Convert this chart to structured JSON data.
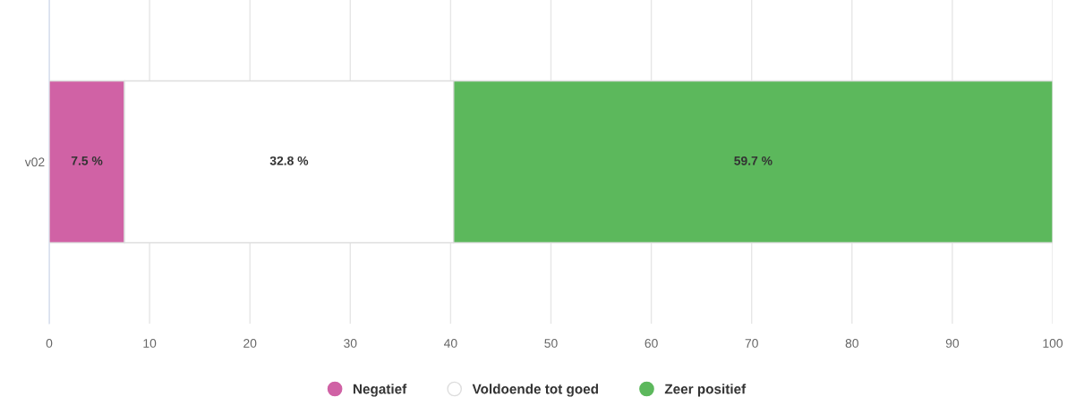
{
  "chart_data": {
    "type": "bar",
    "orientation": "horizontal",
    "stacked": true,
    "categories": [
      "v02"
    ],
    "series": [
      {
        "name": "Negatief",
        "color": "#d062a5",
        "values": [
          7.5
        ],
        "value_labels": [
          "7.5 %"
        ]
      },
      {
        "name": "Voldoende tot goed",
        "color": "#ffffff",
        "values": [
          32.8
        ],
        "value_labels": [
          "32.8 %"
        ]
      },
      {
        "name": "Zeer positief",
        "color": "#5cb85c",
        "values": [
          59.7
        ],
        "value_labels": [
          "59.7 %"
        ]
      }
    ],
    "xlim": [
      0,
      100
    ],
    "xticks": [
      0,
      10,
      20,
      30,
      40,
      50,
      60,
      70,
      80,
      90,
      100
    ],
    "grid": "x",
    "legend": "bottom"
  }
}
